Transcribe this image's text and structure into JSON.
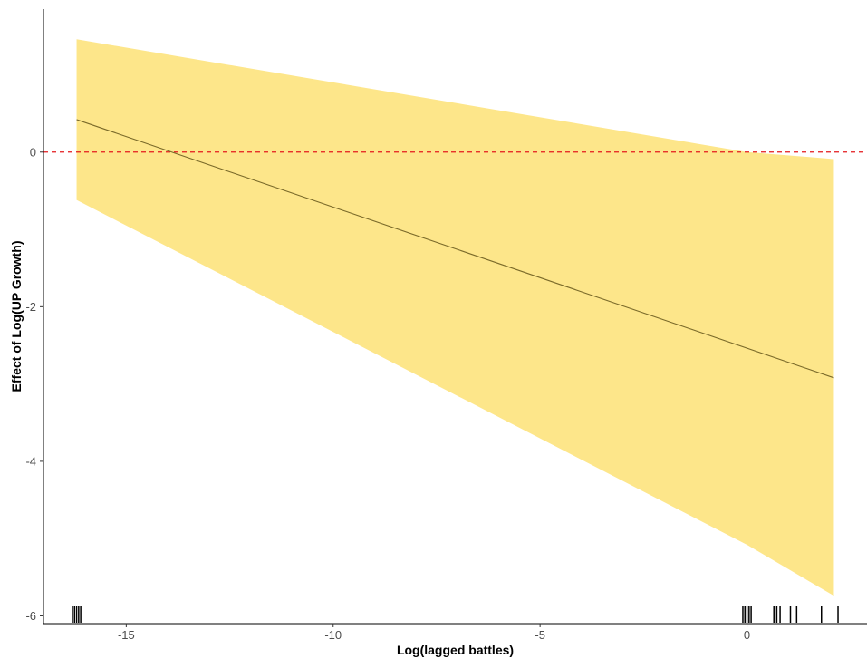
{
  "chart_data": {
    "type": "line",
    "xlabel": "Log(lagged battles)",
    "ylabel": "Effect of Log(UP Growth)",
    "xlim": [
      -17.0,
      2.9
    ],
    "ylim": [
      -6.1,
      1.85
    ],
    "x_ticks": [
      -15,
      -10,
      -5,
      0
    ],
    "x_tick_labels": [
      "-15",
      "-10",
      "-5",
      "0"
    ],
    "y_ticks": [
      0,
      -2,
      -4,
      -6
    ],
    "y_tick_labels": [
      "0",
      "-2",
      "-4",
      "-6"
    ],
    "grid": false,
    "legend": "none",
    "series": [
      {
        "kind": "estimate_line",
        "x": [
          -16.2,
          2.1
        ],
        "y": [
          0.42,
          -2.92
        ]
      }
    ],
    "confidence_band": {
      "x": [
        -16.2,
        0.0,
        2.1
      ],
      "upper": [
        1.46,
        0.0,
        -0.09
      ],
      "lower": [
        -0.62,
        -5.08,
        -5.74
      ]
    },
    "reference_line": {
      "y": 0,
      "style": "dashed"
    },
    "rug": {
      "x": [
        -16.3,
        -16.25,
        -16.2,
        -16.15,
        -16.1,
        -0.1,
        -0.05,
        0.0,
        0.05,
        0.1,
        0.65,
        0.72,
        0.8,
        1.05,
        1.2,
        1.8,
        2.2
      ]
    },
    "colors": {
      "band": "#fde68a",
      "estimate_line": "#7a6a2a",
      "reference_line": "#e41a1c",
      "axis": "#000000",
      "rug": "#000000"
    }
  }
}
